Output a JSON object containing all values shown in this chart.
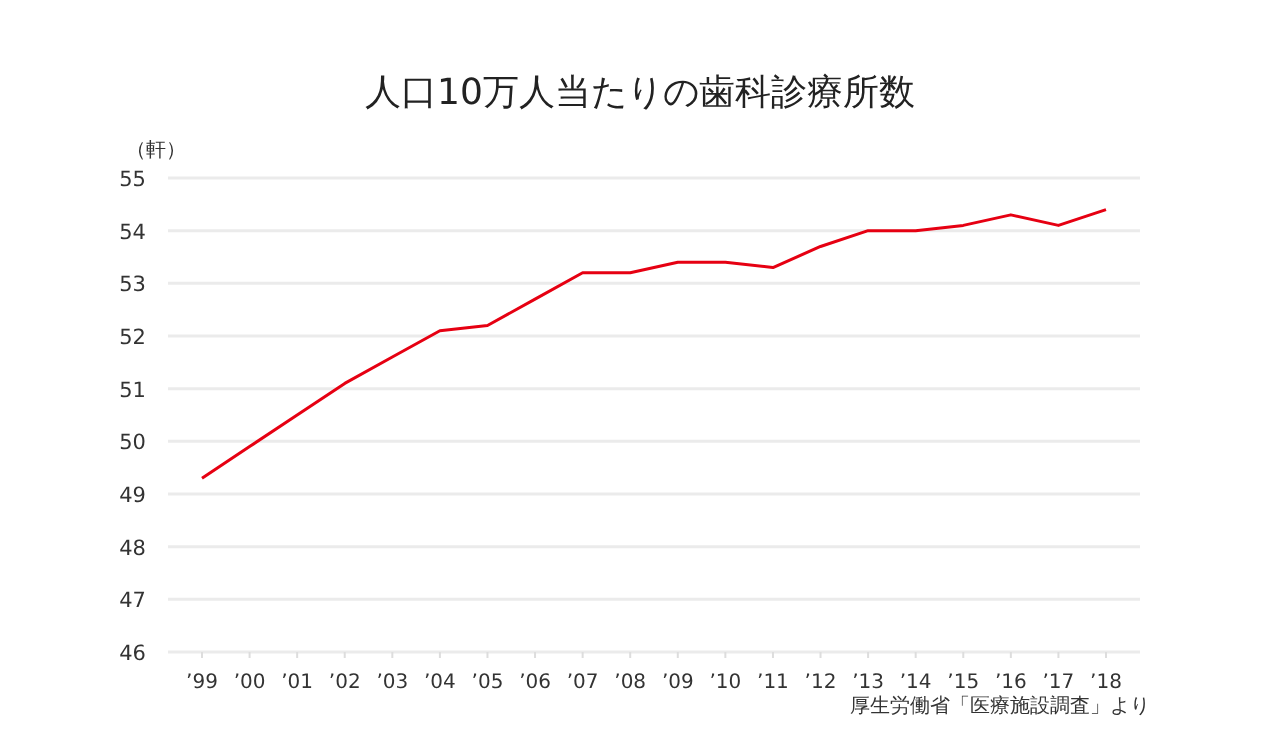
{
  "chart_data": {
    "type": "line",
    "title": "人口10万人当たりの歯科診療所数",
    "ylabel": "（軒）",
    "categories": [
      "’99",
      "’00",
      "’01",
      "’02",
      "’03",
      "’04",
      "’05",
      "’06",
      "’07",
      "’08",
      "’09",
      "’10",
      "’11",
      "’12",
      "’13",
      "’14",
      "’15",
      "’16",
      "’17",
      "’18"
    ],
    "series": [
      {
        "color": "#e60012",
        "values": [
          49.3,
          49.9,
          50.5,
          51.1,
          51.6,
          52.1,
          52.2,
          52.7,
          53.2,
          53.2,
          53.4,
          53.4,
          53.3,
          53.7,
          54.0,
          54.0,
          54.1,
          54.3,
          54.1,
          54.4
        ]
      }
    ],
    "ylim": [
      46,
      55
    ],
    "yticks": [
      46,
      47,
      48,
      49,
      50,
      51,
      52,
      53,
      54,
      55
    ],
    "grid": "y",
    "annotations": [
      "厚生労働省「医療施設調査」より"
    ]
  }
}
